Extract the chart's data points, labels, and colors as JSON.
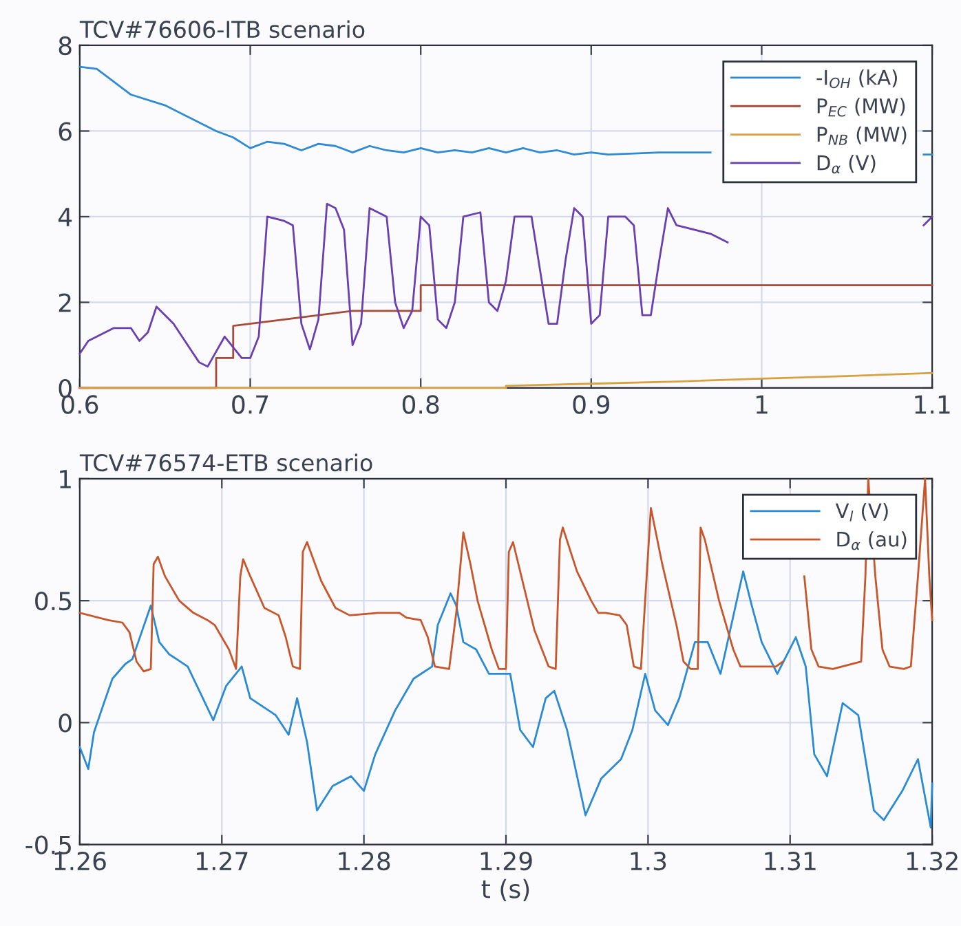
{
  "chart_data": [
    {
      "type": "line",
      "title": "TCV#76606-ITB scenario",
      "xlim": [
        0.6,
        1.1
      ],
      "xticks": [
        0.6,
        0.7,
        0.8,
        0.9,
        1,
        1.1
      ],
      "ylim": [
        0,
        8
      ],
      "yticks": [
        0,
        2,
        4,
        6,
        8
      ],
      "grid": true,
      "legend": "top right",
      "series": [
        {
          "name": "-I$_{OH}$ (kA)",
          "color": "#2f8ad4",
          "x": [
            0.6,
            0.61,
            0.62,
            0.63,
            0.65,
            0.67,
            0.68,
            0.69,
            0.7,
            0.71,
            0.72,
            0.73,
            0.74,
            0.75,
            0.76,
            0.77,
            0.78,
            0.79,
            0.8,
            0.81,
            0.82,
            0.83,
            0.84,
            0.85,
            0.86,
            0.87,
            0.88,
            0.89,
            0.9,
            0.91,
            0.94,
            0.97,
            1.0,
            1.095,
            1.1
          ],
          "values": [
            7.5,
            7.45,
            7.15,
            6.85,
            6.6,
            6.2,
            6.0,
            5.85,
            5.6,
            5.75,
            5.7,
            5.55,
            5.7,
            5.65,
            5.5,
            5.65,
            5.55,
            5.5,
            5.6,
            5.5,
            5.55,
            5.5,
            5.6,
            5.5,
            5.6,
            5.5,
            5.55,
            5.45,
            5.5,
            5.45,
            5.5,
            5.5,
            null,
            5.45,
            5.45
          ]
        },
        {
          "name": "P$_{EC}$ (MW)",
          "color": "#a84a3a",
          "x": [
            0.6,
            0.68,
            0.68,
            0.69,
            0.69,
            0.72,
            0.76,
            0.8,
            0.8,
            1.1
          ],
          "values": [
            0,
            0,
            0.7,
            0.7,
            1.45,
            1.6,
            1.8,
            1.8,
            2.4,
            2.4
          ]
        },
        {
          "name": "P$_{NB}$ (MW)",
          "color": "#d9a040",
          "x": [
            0.6,
            0.85,
            0.85,
            0.9,
            0.95,
            1.0,
            1.05,
            1.1
          ],
          "values": [
            0,
            0,
            0.05,
            0.1,
            0.15,
            0.22,
            0.28,
            0.35
          ]
        },
        {
          "name": "D$_{α}$ (V)",
          "color": "#6a3fb0",
          "x": [
            0.6,
            0.605,
            0.62,
            0.63,
            0.635,
            0.64,
            0.645,
            0.655,
            0.67,
            0.675,
            0.685,
            0.695,
            0.7,
            0.705,
            0.71,
            0.72,
            0.725,
            0.73,
            0.735,
            0.74,
            0.745,
            0.75,
            0.755,
            0.76,
            0.765,
            0.77,
            0.78,
            0.785,
            0.79,
            0.795,
            0.8,
            0.805,
            0.81,
            0.815,
            0.82,
            0.825,
            0.835,
            0.84,
            0.845,
            0.85,
            0.855,
            0.865,
            0.875,
            0.88,
            0.885,
            0.89,
            0.895,
            0.9,
            0.905,
            0.91,
            0.92,
            0.925,
            0.93,
            0.935,
            0.94,
            0.945,
            0.95,
            0.97,
            0.98,
            1.0,
            1.095,
            1.1
          ],
          "values": [
            0.8,
            1.1,
            1.4,
            1.4,
            1.1,
            1.3,
            1.9,
            1.5,
            0.6,
            0.5,
            1.2,
            0.7,
            0.7,
            1.2,
            4.0,
            3.9,
            3.8,
            1.5,
            0.9,
            1.6,
            4.3,
            4.2,
            3.7,
            1.0,
            1.5,
            4.2,
            4.0,
            2.0,
            1.4,
            1.8,
            4.0,
            3.8,
            1.6,
            1.4,
            2.0,
            4.0,
            4.1,
            2.0,
            1.8,
            2.5,
            4.0,
            4.0,
            1.5,
            1.5,
            3.0,
            4.2,
            4.0,
            1.5,
            1.7,
            4.0,
            4.0,
            3.8,
            1.7,
            1.7,
            3.0,
            4.2,
            3.8,
            3.6,
            3.4,
            null,
            3.8,
            4.0
          ]
        }
      ]
    },
    {
      "type": "line",
      "title": "TCV#76574-ETB scenario",
      "xlabel": "t (s)",
      "xlim": [
        1.26,
        1.32
      ],
      "xticks": [
        1.26,
        1.27,
        1.28,
        1.29,
        1.3,
        1.31,
        1.32
      ],
      "ylim": [
        -0.5,
        1
      ],
      "yticks": [
        -0.5,
        0,
        0.5,
        1
      ],
      "grid": true,
      "legend": "top right",
      "series": [
        {
          "name": "V$_{l}$ (V)",
          "color": "#2a8ad4",
          "x": [
            1.26,
            1.2606,
            1.261,
            1.2617,
            1.2623,
            1.2632,
            1.2637,
            1.265,
            1.2656,
            1.2663,
            1.2676,
            1.2694,
            1.2703,
            1.2714,
            1.272,
            1.2738,
            1.2747,
            1.2753,
            1.276,
            1.2767,
            1.2778,
            1.2791,
            1.28,
            1.2808,
            1.2822,
            1.2835,
            1.2848,
            1.2852,
            1.2861,
            1.2865,
            1.287,
            1.2879,
            1.2888,
            1.2897,
            1.2903,
            1.291,
            1.2919,
            1.2928,
            1.2934,
            1.2943,
            1.2956,
            1.2967,
            1.2981,
            1.2989,
            1.2998,
            1.3005,
            1.3014,
            1.3022,
            1.3033,
            1.3042,
            1.3051,
            1.3067,
            1.3073,
            1.308,
            1.3091,
            1.3104,
            1.3111,
            1.3117,
            1.3126,
            1.3137,
            1.3148,
            1.3159,
            1.3166,
            1.3179,
            1.319,
            1.3199,
            1.32
          ],
          "values": [
            -0.1,
            -0.19,
            -0.04,
            0.08,
            0.18,
            0.24,
            0.26,
            0.48,
            0.33,
            0.28,
            0.23,
            0.01,
            0.15,
            0.23,
            0.1,
            0.03,
            -0.05,
            0.1,
            -0.08,
            -0.36,
            -0.26,
            -0.22,
            -0.28,
            -0.13,
            0.05,
            0.18,
            0.23,
            0.4,
            0.53,
            0.48,
            0.33,
            0.3,
            0.2,
            0.2,
            0.2,
            -0.03,
            -0.1,
            0.1,
            0.13,
            -0.03,
            -0.38,
            -0.23,
            -0.15,
            -0.03,
            0.2,
            0.05,
            -0.01,
            0.1,
            0.33,
            0.33,
            0.2,
            0.62,
            0.48,
            0.33,
            0.2,
            0.35,
            0.23,
            -0.13,
            -0.22,
            0.08,
            0.03,
            -0.36,
            -0.4,
            -0.28,
            -0.15,
            -0.43,
            -0.25
          ]
        },
        {
          "name": "D$_{α}$ (au)",
          "color": "#c8562a",
          "x": [
            1.26,
            1.262,
            1.263,
            1.2635,
            1.264,
            1.2645,
            1.265,
            1.2652,
            1.2655,
            1.266,
            1.267,
            1.268,
            1.269,
            1.2695,
            1.2705,
            1.271,
            1.2713,
            1.2715,
            1.272,
            1.273,
            1.274,
            1.2745,
            1.275,
            1.2755,
            1.2757,
            1.276,
            1.277,
            1.278,
            1.279,
            1.281,
            1.2825,
            1.283,
            1.284,
            1.2845,
            1.285,
            1.286,
            1.2865,
            1.287,
            1.2875,
            1.288,
            1.289,
            1.2895,
            1.29,
            1.2902,
            1.2905,
            1.291,
            1.292,
            1.293,
            1.2935,
            1.2938,
            1.294,
            1.295,
            1.296,
            1.2965,
            1.297,
            1.298,
            1.2985,
            1.299,
            1.2995,
            1.3002,
            1.301,
            1.302,
            1.3025,
            1.303,
            1.3035,
            1.3037,
            1.304,
            1.305,
            1.306,
            1.3065,
            1.309,
            1.3095,
            1.31,
            1.3105,
            1.311,
            1.3115,
            1.312,
            1.313,
            1.315,
            1.3153,
            1.3155,
            1.316,
            1.3165,
            1.317,
            1.318,
            1.3185,
            1.319,
            1.3195,
            1.3198,
            1.32
          ],
          "values": [
            0.45,
            0.42,
            0.41,
            0.37,
            0.25,
            0.21,
            0.22,
            0.65,
            0.68,
            0.6,
            0.5,
            0.45,
            0.42,
            0.4,
            0.3,
            0.22,
            0.6,
            0.67,
            0.6,
            0.47,
            0.44,
            0.35,
            0.23,
            0.22,
            0.7,
            0.74,
            0.58,
            0.47,
            0.44,
            0.45,
            0.45,
            0.43,
            0.42,
            0.35,
            0.23,
            0.22,
            0.45,
            0.78,
            0.65,
            0.5,
            0.3,
            0.22,
            0.22,
            0.7,
            0.74,
            0.62,
            0.38,
            0.23,
            0.22,
            0.75,
            0.8,
            0.62,
            0.5,
            0.45,
            0.45,
            0.44,
            0.4,
            0.23,
            0.22,
            0.88,
            0.65,
            0.4,
            0.25,
            0.22,
            0.22,
            0.8,
            0.75,
            0.5,
            0.3,
            0.23,
            0.23,
            0.25,
            null,
            null,
            0.6,
            0.3,
            0.23,
            0.22,
            0.25,
            0.6,
            1.0,
            0.6,
            0.3,
            0.23,
            0.22,
            0.23,
            0.6,
            1.0,
            0.6,
            0.42
          ]
        }
      ]
    }
  ]
}
